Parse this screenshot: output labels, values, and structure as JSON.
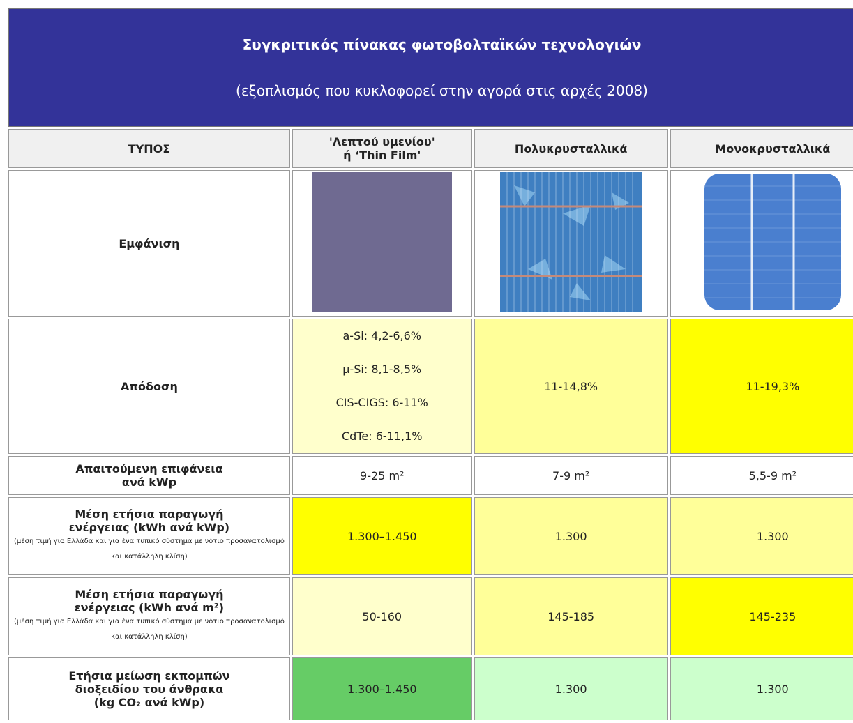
{
  "header": {
    "title": "Συγκριτικός πίνακας φωτοβολταϊκών τεχνολογιών",
    "subtitle": "(εξοπλισμός που κυκλοφορεί στην αγορά στις αρχές 2008)"
  },
  "table": {
    "columns": [
      "ΤΥΠΟΣ",
      "'Λεπτού υμενίου'\nή ‘Thin Film'",
      "Πολυκρυσταλλικά",
      "Μονοκρυσταλλικά"
    ],
    "rows": [
      {
        "label": "Εμφάνιση"
      },
      {
        "label": "Απόδοση",
        "cells": [
          [
            "a-Si: 4,2-6,6%",
            "μ-Si: 8,1-8,5%",
            "CIS-CIGS: 6-11%",
            "CdTe: 6-11,1%"
          ],
          "11-14,8%",
          "11-19,3%"
        ]
      },
      {
        "label": "Απαιτούμενη επιφάνεια\nανά kWp",
        "cells": [
          "9-25 m²",
          "7-9 m²",
          "5,5-9 m²"
        ]
      },
      {
        "label": "Μέση ετήσια παραγωγή\nενέργειας (kWh ανά kWp)",
        "note": "(μέση τιμή για Ελλάδα και για ένα τυπικό σύστημα με νότιο προσανατολισμό και κατάλληλη κλίση)",
        "cells": [
          "1.300–1.450",
          "1.300",
          "1.300"
        ]
      },
      {
        "label": "Μέση ετήσια παραγωγή\nενέργειας (kWh ανά m²)",
        "note": "(μέση τιμή για Ελλάδα και για ένα τυπικό σύστημα με νότιο προσανατολισμό και κατάλληλη κλίση)",
        "cells": [
          "50-160",
          "145-185",
          "145-235"
        ]
      },
      {
        "label": "Ετήσια μείωση εκπομπών\nδιοξειδίου του άνθρακα\n(kg CO₂ ανά kWp)",
        "cells": [
          "1.300–1.450",
          "1.300",
          "1.300"
        ]
      }
    ]
  }
}
